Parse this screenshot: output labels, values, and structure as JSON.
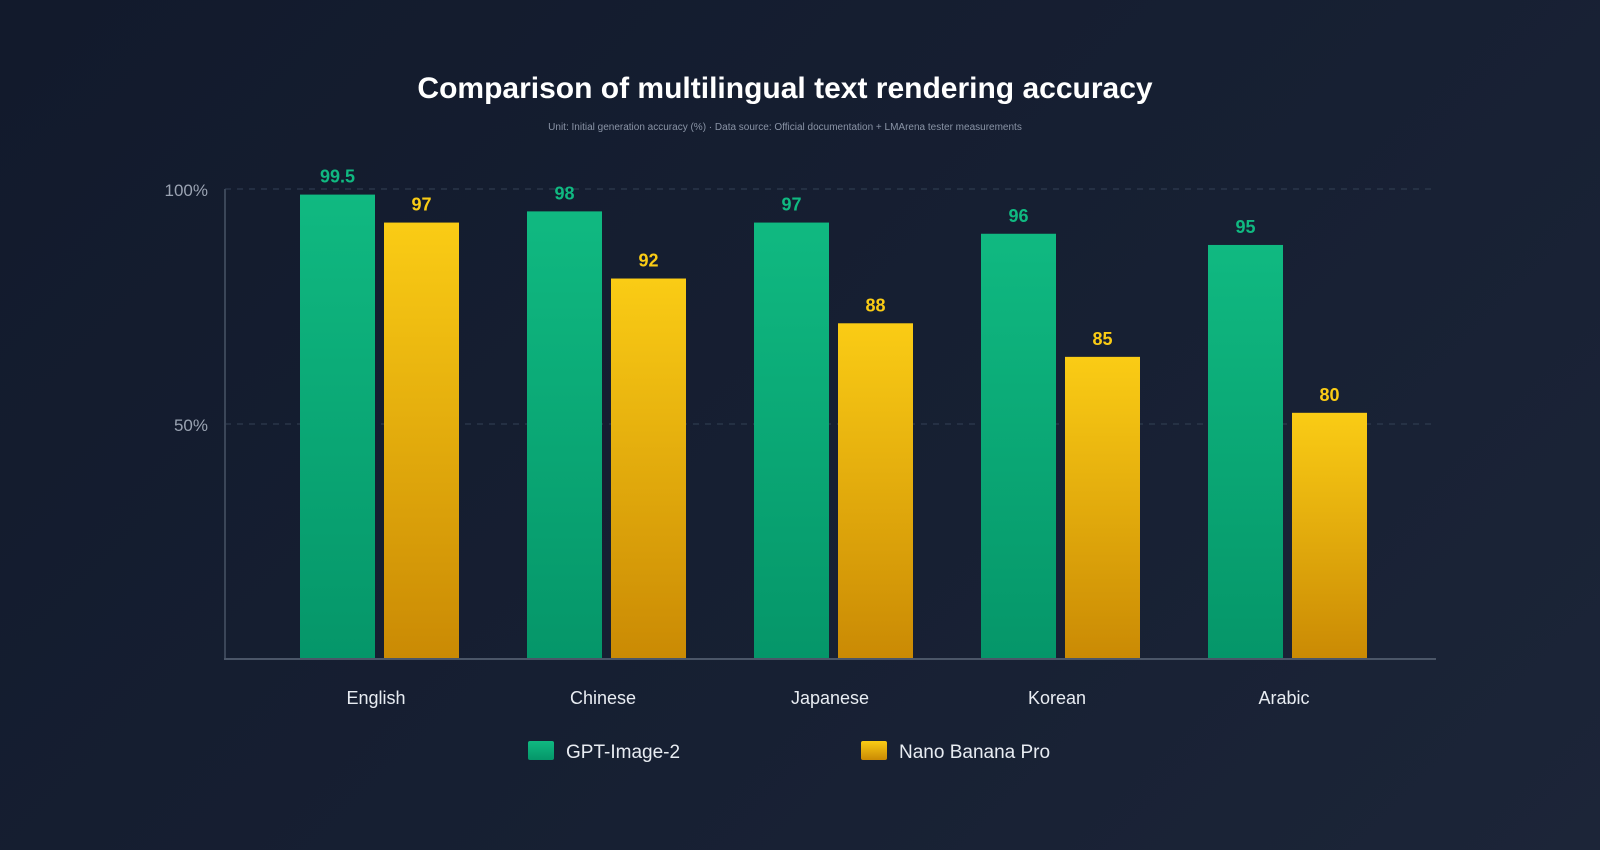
{
  "chart_data": {
    "type": "bar",
    "title": "Comparison of multilingual text rendering accuracy",
    "subtitle": "Unit: Initial generation accuracy (%) · Data source: Official documentation + LMArena tester measurements",
    "xlabel": "",
    "ylabel": "",
    "categories": [
      "English",
      "Chinese",
      "Japanese",
      "Korean",
      "Arabic"
    ],
    "series": [
      {
        "name": "GPT-Image-2",
        "values": [
          99.5,
          98,
          97,
          96,
          95
        ],
        "color": "#10b981",
        "color_bottom": "#059669"
      },
      {
        "name": "Nano Banana Pro",
        "values": [
          97,
          92,
          88,
          85,
          80
        ],
        "color": "#facc15",
        "color_bottom": "#ca8a04"
      }
    ],
    "y_ticks": [
      "50%",
      "100%"
    ],
    "grid": true,
    "legend": "bottom"
  }
}
